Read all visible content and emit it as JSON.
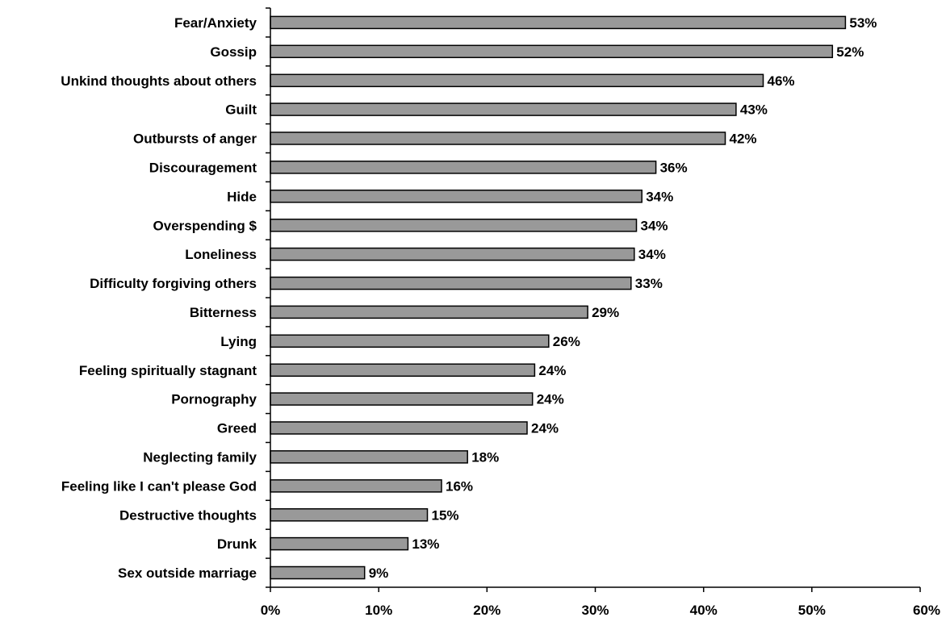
{
  "chart_data": {
    "type": "bar",
    "orientation": "horizontal",
    "categories": [
      "Fear/Anxiety",
      "Gossip",
      "Unkind thoughts about others",
      "Guilt",
      "Outbursts of anger",
      "Discouragement",
      "Hide",
      "Overspending $",
      "Loneliness",
      "Difficulty forgiving others",
      "Bitterness",
      "Lying",
      "Feeling spiritually stagnant",
      "Pornography",
      "Greed",
      "Neglecting family",
      "Feeling like I can't please God",
      "Destructive thoughts",
      "Drunk",
      "Sex outside marriage"
    ],
    "values": [
      53.1,
      51.9,
      45.5,
      43.0,
      42.0,
      35.6,
      34.3,
      33.8,
      33.6,
      33.3,
      29.3,
      25.7,
      24.4,
      24.2,
      23.7,
      18.2,
      15.8,
      14.5,
      12.7,
      8.7
    ],
    "value_labels": [
      "53%",
      "52%",
      "46%",
      "43%",
      "42%",
      "36%",
      "34%",
      "34%",
      "34%",
      "33%",
      "29%",
      "26%",
      "24%",
      "24%",
      "24%",
      "18%",
      "16%",
      "15%",
      "13%",
      "9%"
    ],
    "xlim": [
      0,
      60
    ],
    "x_ticks": [
      0,
      10,
      20,
      30,
      40,
      50,
      60
    ],
    "x_tick_labels": [
      "0%",
      "10%",
      "20%",
      "30%",
      "40%",
      "50%",
      "60%"
    ],
    "title": "",
    "xlabel": "",
    "ylabel": "",
    "grid": false,
    "legend": "none",
    "bar_color": "#999999",
    "bar_edge_color": "#000000"
  }
}
